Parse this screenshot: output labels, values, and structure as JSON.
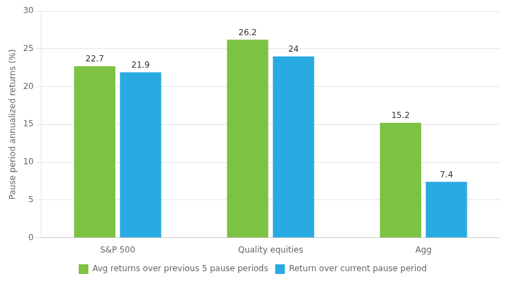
{
  "chart_data": {
    "type": "bar",
    "categories": [
      "S&P 500",
      "Quality equities",
      "Agg"
    ],
    "series": [
      {
        "name": "Avg returns over previous 5 pause periods",
        "color": "#7DC242",
        "values": [
          22.7,
          26.2,
          15.2
        ]
      },
      {
        "name": "Return over current pause period",
        "color": "#29ABE2",
        "values": [
          21.9,
          24.0,
          7.4
        ]
      }
    ],
    "ylabel": "Pause period annualized returns (%)",
    "ylim": [
      0,
      30
    ],
    "yticks": [
      0,
      5,
      10,
      15,
      20,
      25,
      30
    ],
    "grid": true,
    "legend": "bottom",
    "data_labels": true
  }
}
